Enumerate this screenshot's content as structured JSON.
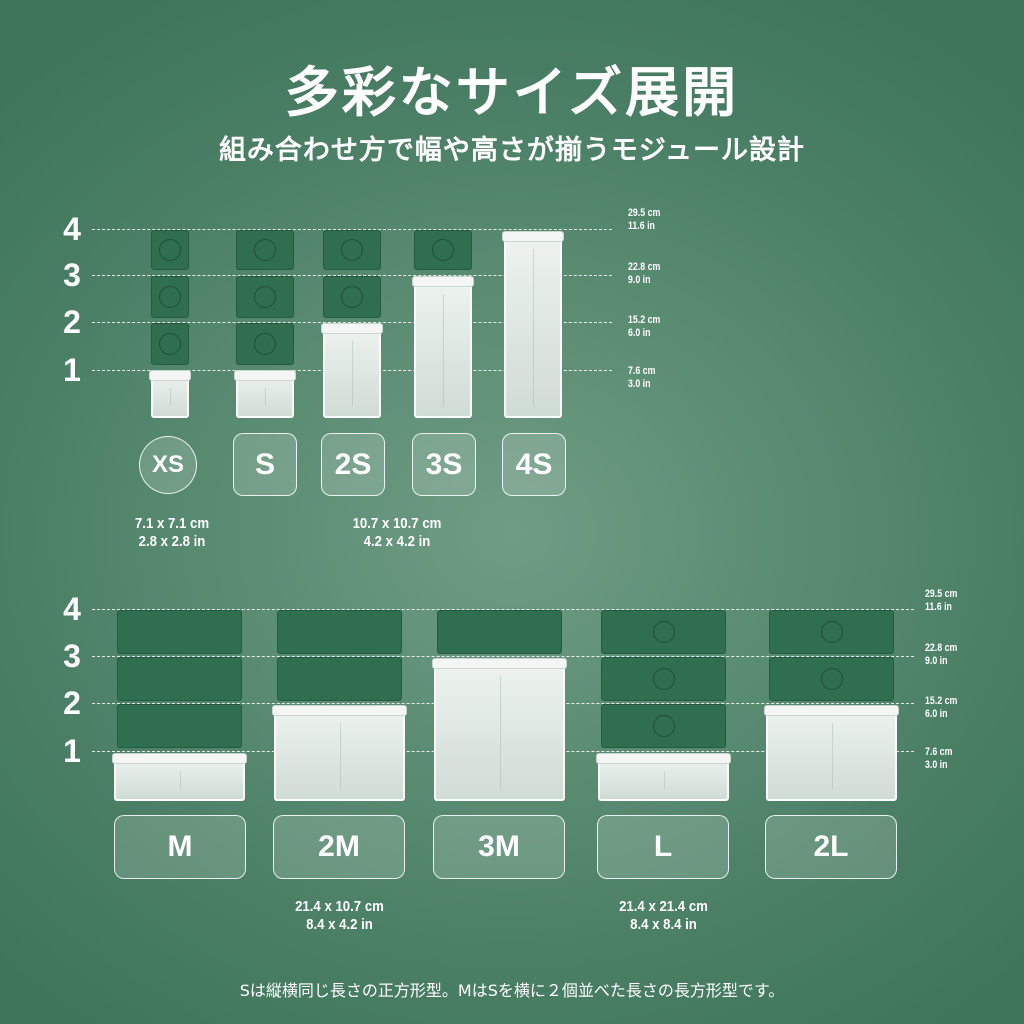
{
  "heading": {
    "title": "多彩なサイズ展開",
    "subtitle": "組み合わせ方で幅や高さが揃うモジュール設計"
  },
  "levels": [
    "1",
    "2",
    "3",
    "4"
  ],
  "heights": [
    {
      "cm": "7.6 cm",
      "in": "3.0 in"
    },
    {
      "cm": "15.2 cm",
      "in": "6.0 in"
    },
    {
      "cm": "22.8 cm",
      "in": "9.0 in"
    },
    {
      "cm": "29.5 cm",
      "in": "11.6 in"
    }
  ],
  "small_group": {
    "sizes": [
      {
        "label": "XS",
        "height_units": 1,
        "stack": 4
      },
      {
        "label": "S",
        "height_units": 1,
        "stack": 4
      },
      {
        "label": "2S",
        "height_units": 2,
        "stack": 2
      },
      {
        "label": "3S",
        "height_units": 3,
        "stack": 1
      },
      {
        "label": "4S",
        "height_units": 4,
        "stack": 1
      }
    ],
    "specs": [
      {
        "cm": "7.1 x 7.1 cm",
        "in": "2.8 x 2.8 in"
      },
      {
        "cm": "10.7 x 10.7 cm",
        "in": "4.2 x 4.2 in"
      }
    ]
  },
  "large_group": {
    "sizes": [
      {
        "label": "M",
        "height_units": 1,
        "stack": 4
      },
      {
        "label": "2M",
        "height_units": 2,
        "stack": 2
      },
      {
        "label": "3M",
        "height_units": 3,
        "stack": 1
      },
      {
        "label": "L",
        "height_units": 1,
        "stack": 4
      },
      {
        "label": "2L",
        "height_units": 2,
        "stack": 2
      }
    ],
    "specs": [
      {
        "cm": "21.4 x 10.7 cm",
        "in": "8.4 x 4.2 in"
      },
      {
        "cm": "21.4 x 21.4 cm",
        "in": "8.4 x 8.4 in"
      }
    ]
  },
  "footnote": "Sは縦横同じ長さの正方形型。MはSを横に２個並べた長さの長方形型です。",
  "colors": {
    "background": "#5a8c72",
    "lid": "#2f6e4e",
    "container": "#e6eee9"
  }
}
